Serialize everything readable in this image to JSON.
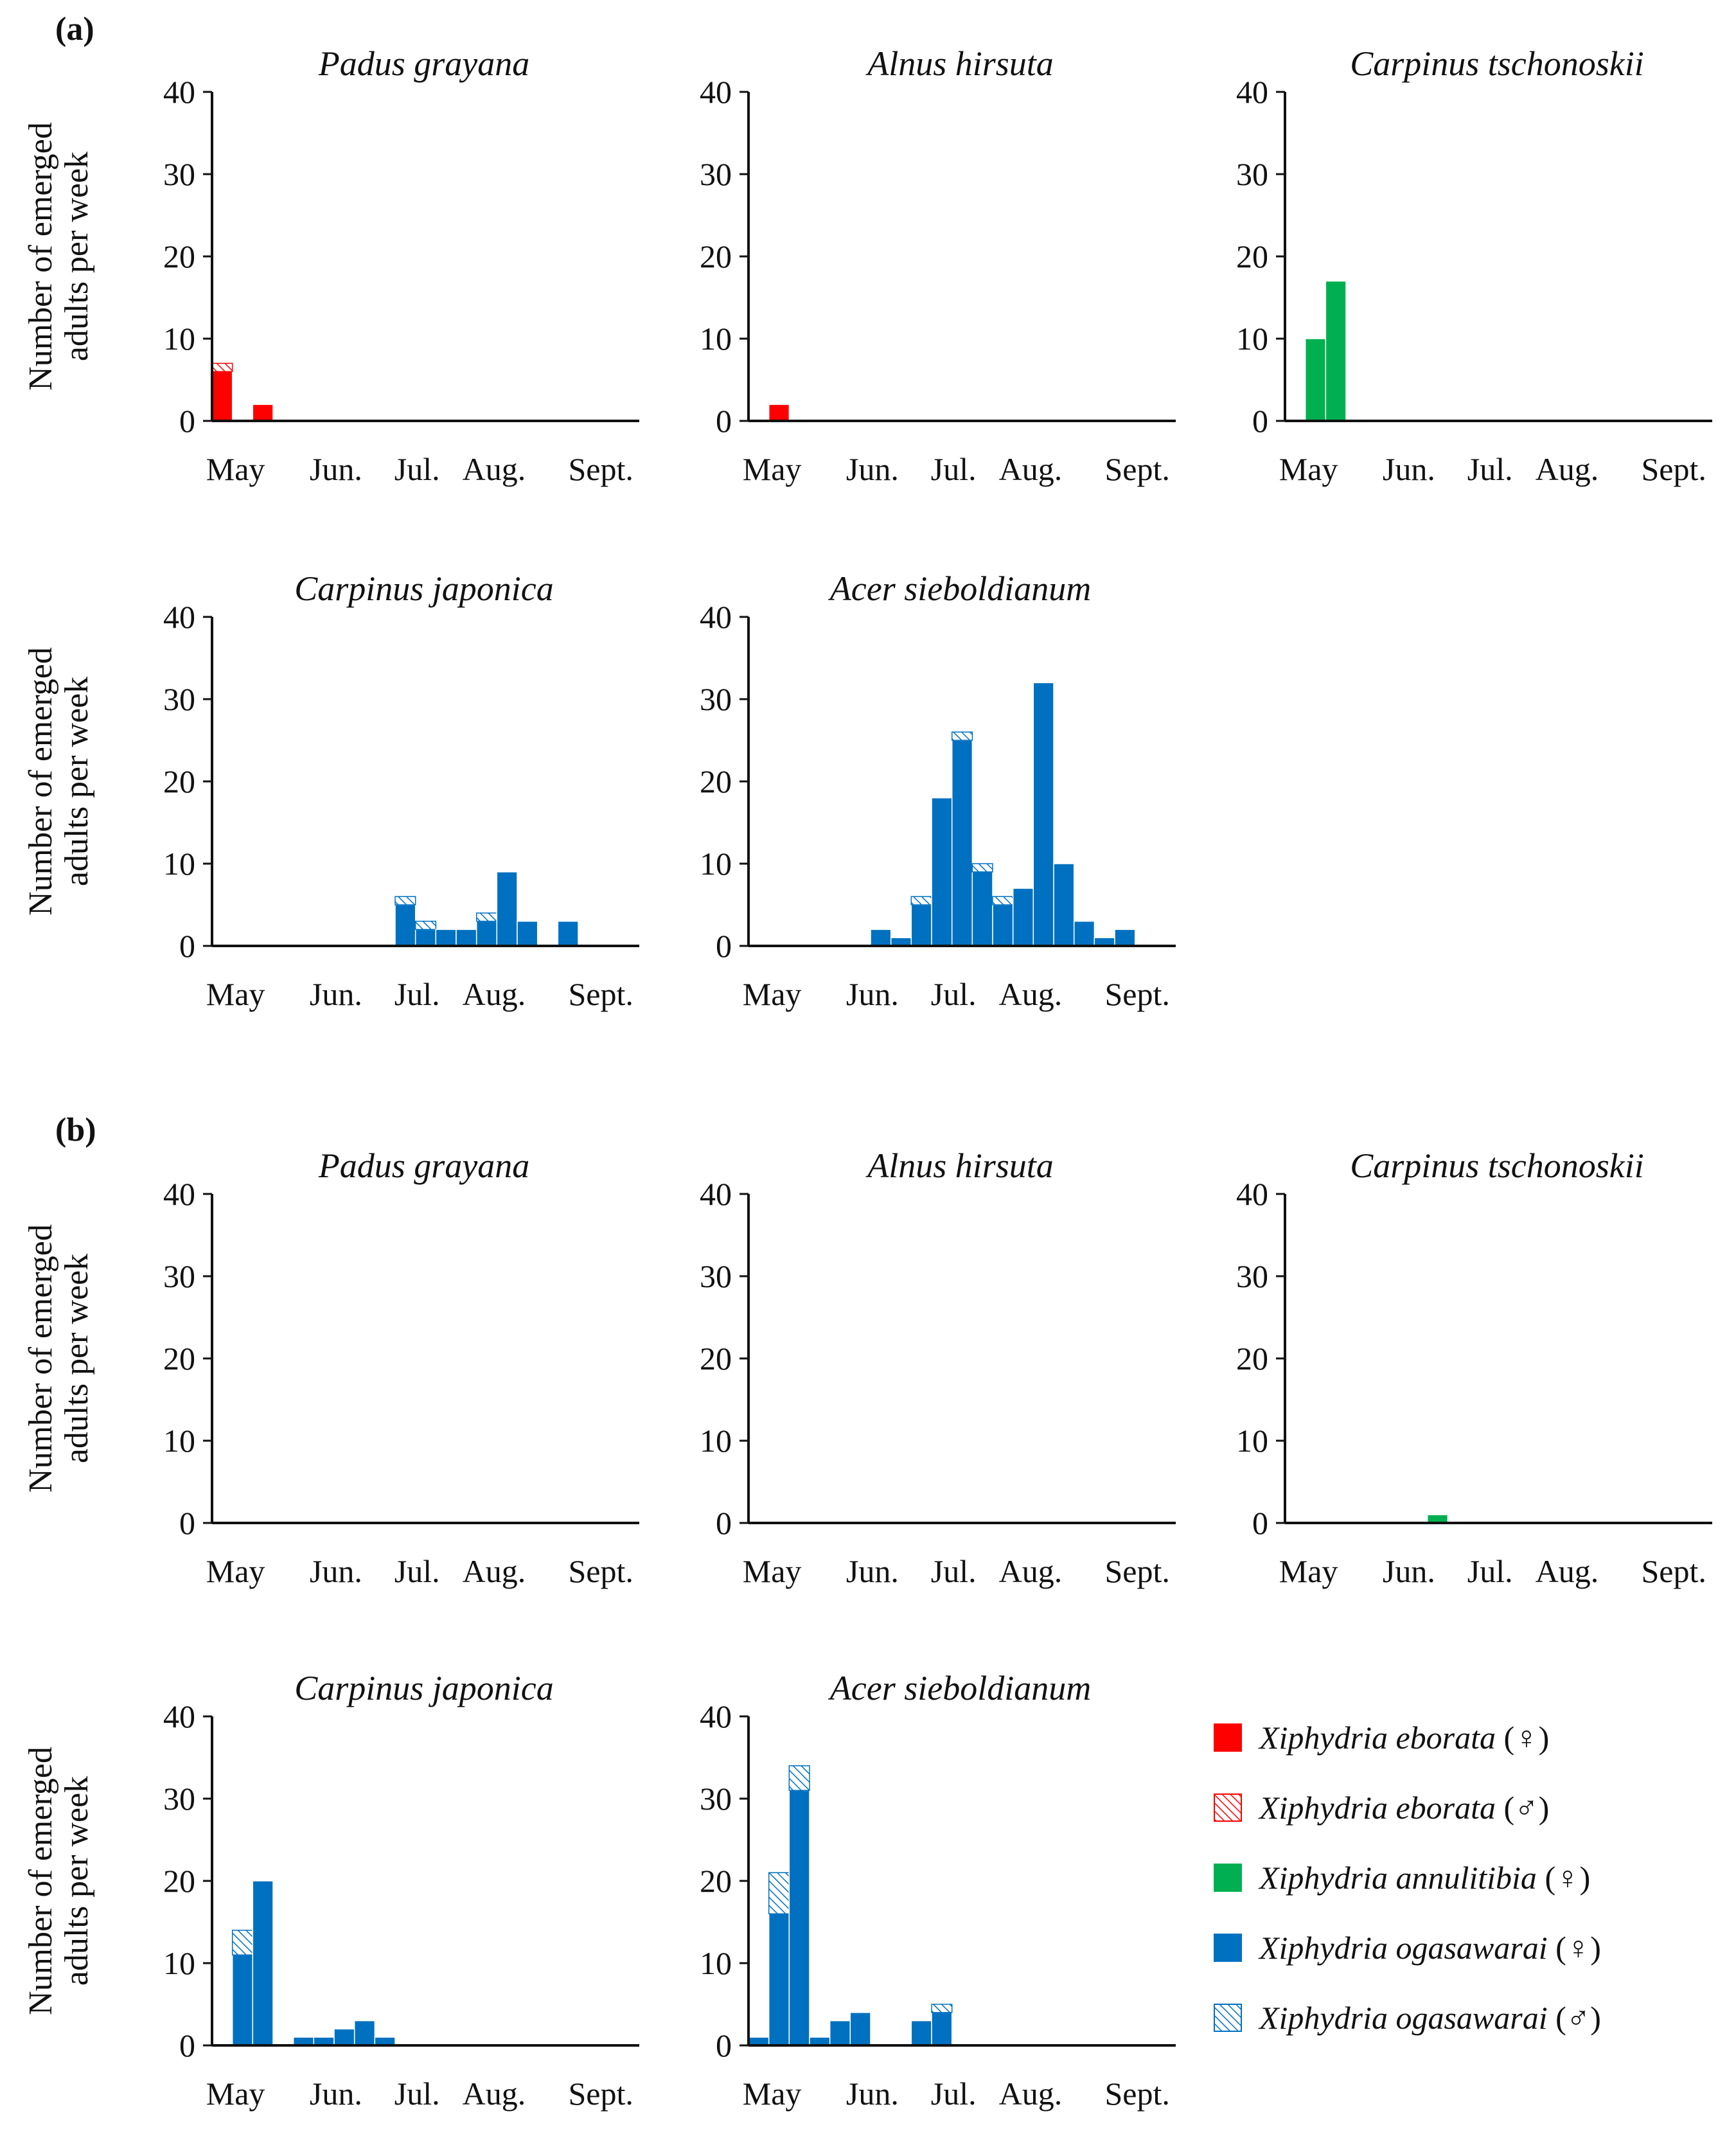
{
  "figure": {
    "panel_labels": [
      "(a)",
      "(b)"
    ]
  },
  "colors": {
    "eborata": "#ff0000",
    "annulitibia": "#00b050",
    "ogasawarai": "#0070c0"
  },
  "legend": [
    {
      "name": "Xiphydria eborata",
      "sex": "(♀)",
      "color": "#ff0000",
      "pattern": "solid"
    },
    {
      "name": "Xiphydria eborata",
      "sex": "(♂)",
      "color": "#ff0000",
      "pattern": "hatch"
    },
    {
      "name": "Xiphydria annulitibia",
      "sex": "(♀)",
      "color": "#00b050",
      "pattern": "solid"
    },
    {
      "name": "Xiphydria ogasawarai",
      "sex": "(♀)",
      "color": "#0070c0",
      "pattern": "solid"
    },
    {
      "name": "Xiphydria ogasawarai",
      "sex": "(♂)",
      "color": "#0070c0",
      "pattern": "hatch"
    }
  ],
  "chart_data": [
    {
      "panel": "(a)",
      "title": "Padus grayana",
      "type": "bar",
      "stacked": true,
      "ylabel": "Number of emerged adults per week",
      "ylim": [
        0,
        40
      ],
      "yticks": [
        0,
        10,
        20,
        30,
        40
      ],
      "xticks": [
        "May",
        "Jun.",
        "Jul.",
        "Aug.",
        "Sept."
      ],
      "color": "#ff0000",
      "bars": [
        {
          "week": 1,
          "female": 6,
          "male": 1
        },
        {
          "week": 3,
          "female": 2,
          "male": 0
        }
      ]
    },
    {
      "panel": "(a)",
      "title": "Alnus hirsuta",
      "type": "bar",
      "stacked": true,
      "ylabel": "",
      "ylim": [
        0,
        40
      ],
      "yticks": [
        0,
        10,
        20,
        30,
        40
      ],
      "xticks": [
        "May",
        "Jun.",
        "Jul.",
        "Aug.",
        "Sept."
      ],
      "color": "#ff0000",
      "bars": [
        {
          "week": 2,
          "female": 2,
          "male": 0
        }
      ]
    },
    {
      "panel": "(a)",
      "title": "Carpinus tschonoskii",
      "type": "bar",
      "stacked": true,
      "ylabel": "",
      "ylim": [
        0,
        40
      ],
      "yticks": [
        0,
        10,
        20,
        30,
        40
      ],
      "xticks": [
        "May",
        "Jun.",
        "Jul.",
        "Aug.",
        "Sept."
      ],
      "color": "#00b050",
      "bars": [
        {
          "week": 2,
          "female": 10,
          "male": 0
        },
        {
          "week": 3,
          "female": 17,
          "male": 0
        }
      ]
    },
    {
      "panel": "(a)",
      "title": "Carpinus japonica",
      "type": "bar",
      "stacked": true,
      "ylabel": "Number of emerged adults per week",
      "ylim": [
        0,
        40
      ],
      "yticks": [
        0,
        10,
        20,
        30,
        40
      ],
      "xticks": [
        "May",
        "Jun.",
        "Jul.",
        "Aug.",
        "Sept."
      ],
      "color": "#0070c0",
      "bars": [
        {
          "week": 10,
          "female": 5,
          "male": 1
        },
        {
          "week": 11,
          "female": 2,
          "male": 1
        },
        {
          "week": 12,
          "female": 2,
          "male": 0
        },
        {
          "week": 13,
          "female": 2,
          "male": 0
        },
        {
          "week": 14,
          "female": 3,
          "male": 1
        },
        {
          "week": 15,
          "female": 9,
          "male": 0
        },
        {
          "week": 16,
          "female": 3,
          "male": 0
        },
        {
          "week": 18,
          "female": 3,
          "male": 0
        }
      ]
    },
    {
      "panel": "(a)",
      "title": "Acer sieboldianum",
      "type": "bar",
      "stacked": true,
      "ylabel": "",
      "ylim": [
        0,
        40
      ],
      "yticks": [
        0,
        10,
        20,
        30,
        40
      ],
      "xticks": [
        "May",
        "Jun.",
        "Jul.",
        "Aug.",
        "Sept."
      ],
      "color": "#0070c0",
      "bars": [
        {
          "week": 7,
          "female": 2,
          "male": 0
        },
        {
          "week": 8,
          "female": 1,
          "male": 0
        },
        {
          "week": 9,
          "female": 5,
          "male": 1
        },
        {
          "week": 10,
          "female": 18,
          "male": 0
        },
        {
          "week": 11,
          "female": 25,
          "male": 1
        },
        {
          "week": 12,
          "female": 9,
          "male": 1
        },
        {
          "week": 13,
          "female": 5,
          "male": 1
        },
        {
          "week": 14,
          "female": 7,
          "male": 0
        },
        {
          "week": 15,
          "female": 32,
          "male": 0
        },
        {
          "week": 16,
          "female": 10,
          "male": 0
        },
        {
          "week": 17,
          "female": 3,
          "male": 0
        },
        {
          "week": 18,
          "female": 1,
          "male": 0
        },
        {
          "week": 19,
          "female": 2,
          "male": 0
        }
      ]
    },
    {
      "panel": "(b)",
      "title": "Padus grayana",
      "type": "bar",
      "stacked": true,
      "ylabel": "Number of emerged adults per week",
      "ylim": [
        0,
        40
      ],
      "yticks": [
        0,
        10,
        20,
        30,
        40
      ],
      "xticks": [
        "May",
        "Jun.",
        "Jul.",
        "Aug.",
        "Sept."
      ],
      "color": "#ff0000",
      "bars": []
    },
    {
      "panel": "(b)",
      "title": "Alnus hirsuta",
      "type": "bar",
      "stacked": true,
      "ylabel": "",
      "ylim": [
        0,
        40
      ],
      "yticks": [
        0,
        10,
        20,
        30,
        40
      ],
      "xticks": [
        "May",
        "Jun.",
        "Jul.",
        "Aug.",
        "Sept."
      ],
      "color": "#ff0000",
      "bars": []
    },
    {
      "panel": "(b)",
      "title": "Carpinus tschonoskii",
      "type": "bar",
      "stacked": true,
      "ylabel": "",
      "ylim": [
        0,
        40
      ],
      "yticks": [
        0,
        10,
        20,
        30,
        40
      ],
      "xticks": [
        "May",
        "Jun.",
        "Jul.",
        "Aug.",
        "Sept."
      ],
      "color": "#00b050",
      "bars": [
        {
          "week": 8,
          "female": 1,
          "male": 0
        }
      ]
    },
    {
      "panel": "(b)",
      "title": "Carpinus japonica",
      "type": "bar",
      "stacked": true,
      "ylabel": "Number of emerged adults per week",
      "ylim": [
        0,
        40
      ],
      "yticks": [
        0,
        10,
        20,
        30,
        40
      ],
      "xticks": [
        "May",
        "Jun.",
        "Jul.",
        "Aug.",
        "Sept."
      ],
      "color": "#0070c0",
      "bars": [
        {
          "week": 2,
          "female": 11,
          "male": 3
        },
        {
          "week": 3,
          "female": 20,
          "male": 0
        },
        {
          "week": 5,
          "female": 1,
          "male": 0
        },
        {
          "week": 6,
          "female": 1,
          "male": 0
        },
        {
          "week": 7,
          "female": 2,
          "male": 0
        },
        {
          "week": 8,
          "female": 3,
          "male": 0
        },
        {
          "week": 9,
          "female": 1,
          "male": 0
        }
      ]
    },
    {
      "panel": "(b)",
      "title": "Acer sieboldianum",
      "type": "bar",
      "stacked": true,
      "ylabel": "",
      "ylim": [
        0,
        40
      ],
      "yticks": [
        0,
        10,
        20,
        30,
        40
      ],
      "xticks": [
        "May",
        "Jun.",
        "Jul.",
        "Aug.",
        "Sept."
      ],
      "color": "#0070c0",
      "bars": [
        {
          "week": 1,
          "female": 1,
          "male": 0
        },
        {
          "week": 2,
          "female": 16,
          "male": 5
        },
        {
          "week": 3,
          "female": 31,
          "male": 3
        },
        {
          "week": 4,
          "female": 1,
          "male": 0
        },
        {
          "week": 5,
          "female": 3,
          "male": 0
        },
        {
          "week": 6,
          "female": 4,
          "male": 0
        },
        {
          "week": 9,
          "female": 3,
          "male": 0
        },
        {
          "week": 10,
          "female": 4,
          "male": 1
        }
      ]
    }
  ]
}
